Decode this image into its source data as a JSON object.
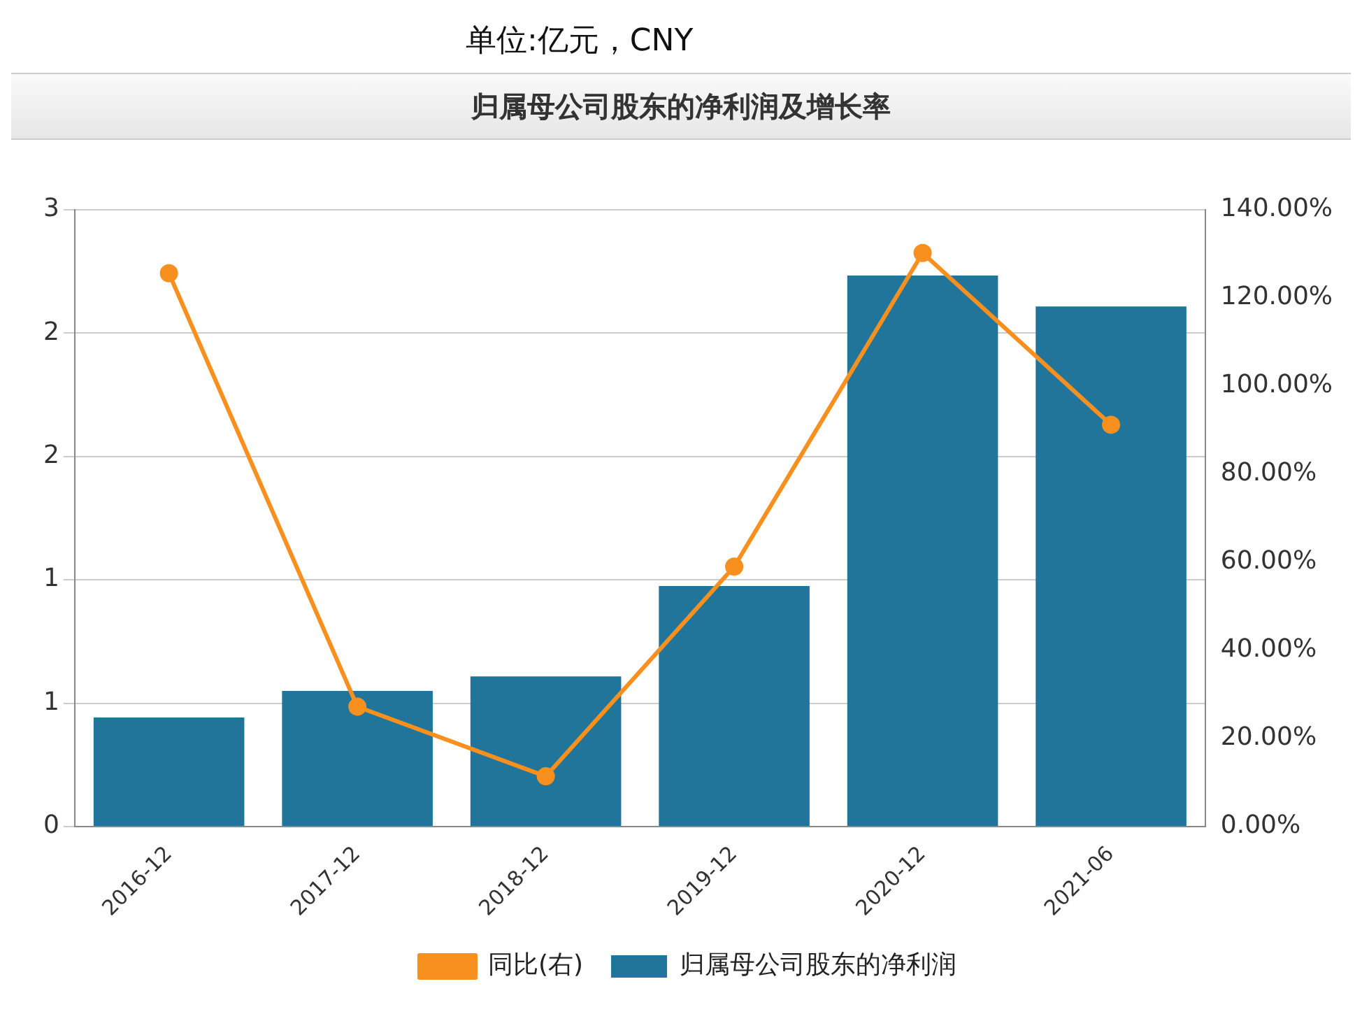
{
  "chart_data": {
    "type": "bar",
    "title": "归属母公司股东的净利润及增长率",
    "subtitle": "单位:亿元，CNY",
    "categories": [
      "2016-12",
      "2017-12",
      "2018-12",
      "2019-12",
      "2020-12",
      "2021-06"
    ],
    "series": [
      {
        "name": "归属母公司股东的净利润",
        "color": "#21759b",
        "values": [
          0.53,
          0.66,
          0.73,
          1.17,
          2.68,
          2.53
        ]
      },
      {
        "name": "同比(右)",
        "type": "line",
        "axis": "y2",
        "color": "#f7901e",
        "values": [
          125.6,
          27.2,
          11.4,
          59.0,
          130.2,
          91.2
        ]
      }
    ],
    "ylim": [
      0,
      3
    ],
    "yticks": [
      {
        "value": 0,
        "label": "0"
      },
      {
        "value": 0.6,
        "label": "1"
      },
      {
        "value": 1.2,
        "label": "1"
      },
      {
        "value": 1.8,
        "label": "2"
      },
      {
        "value": 2.4,
        "label": "2"
      },
      {
        "value": 3,
        "label": "3"
      }
    ],
    "y2lim": [
      0,
      140
    ],
    "y2ticks": [
      {
        "value": 0,
        "label": "0.00%"
      },
      {
        "value": 20,
        "label": "20.00%"
      },
      {
        "value": 40,
        "label": "40.00%"
      },
      {
        "value": 60,
        "label": "60.00%"
      },
      {
        "value": 80,
        "label": "80.00%"
      },
      {
        "value": 100,
        "label": "100.00%"
      },
      {
        "value": 120,
        "label": "120.00%"
      },
      {
        "value": 140,
        "label": "140.00%"
      }
    ],
    "grid": "y",
    "legend": "bottom",
    "marker": "circle"
  }
}
